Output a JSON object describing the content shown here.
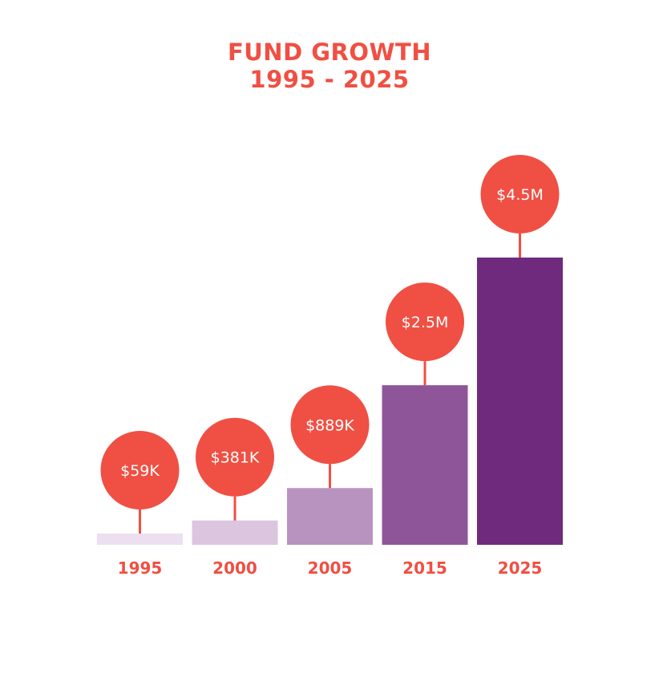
{
  "title_line1": "FUND GROWTH",
  "title_line2": "1995 - 2025",
  "colors": {
    "accent": "#f04f43",
    "bar_shades": [
      "#ecdff0",
      "#dbc5df",
      "#b993c0",
      "#8f5599",
      "#702a7d"
    ]
  },
  "chart_data": {
    "type": "bar",
    "title": "FUND GROWTH 1995 - 2025",
    "categories": [
      "1995",
      "2000",
      "2005",
      "2015",
      "2025"
    ],
    "values": [
      59000,
      381000,
      889000,
      2500000,
      4500000
    ],
    "value_labels": [
      "$59K",
      "$381K",
      "$889K",
      "$2.5M",
      "$4.5M"
    ],
    "xlabel": "",
    "ylabel": "",
    "grid": false,
    "legend": "none"
  }
}
